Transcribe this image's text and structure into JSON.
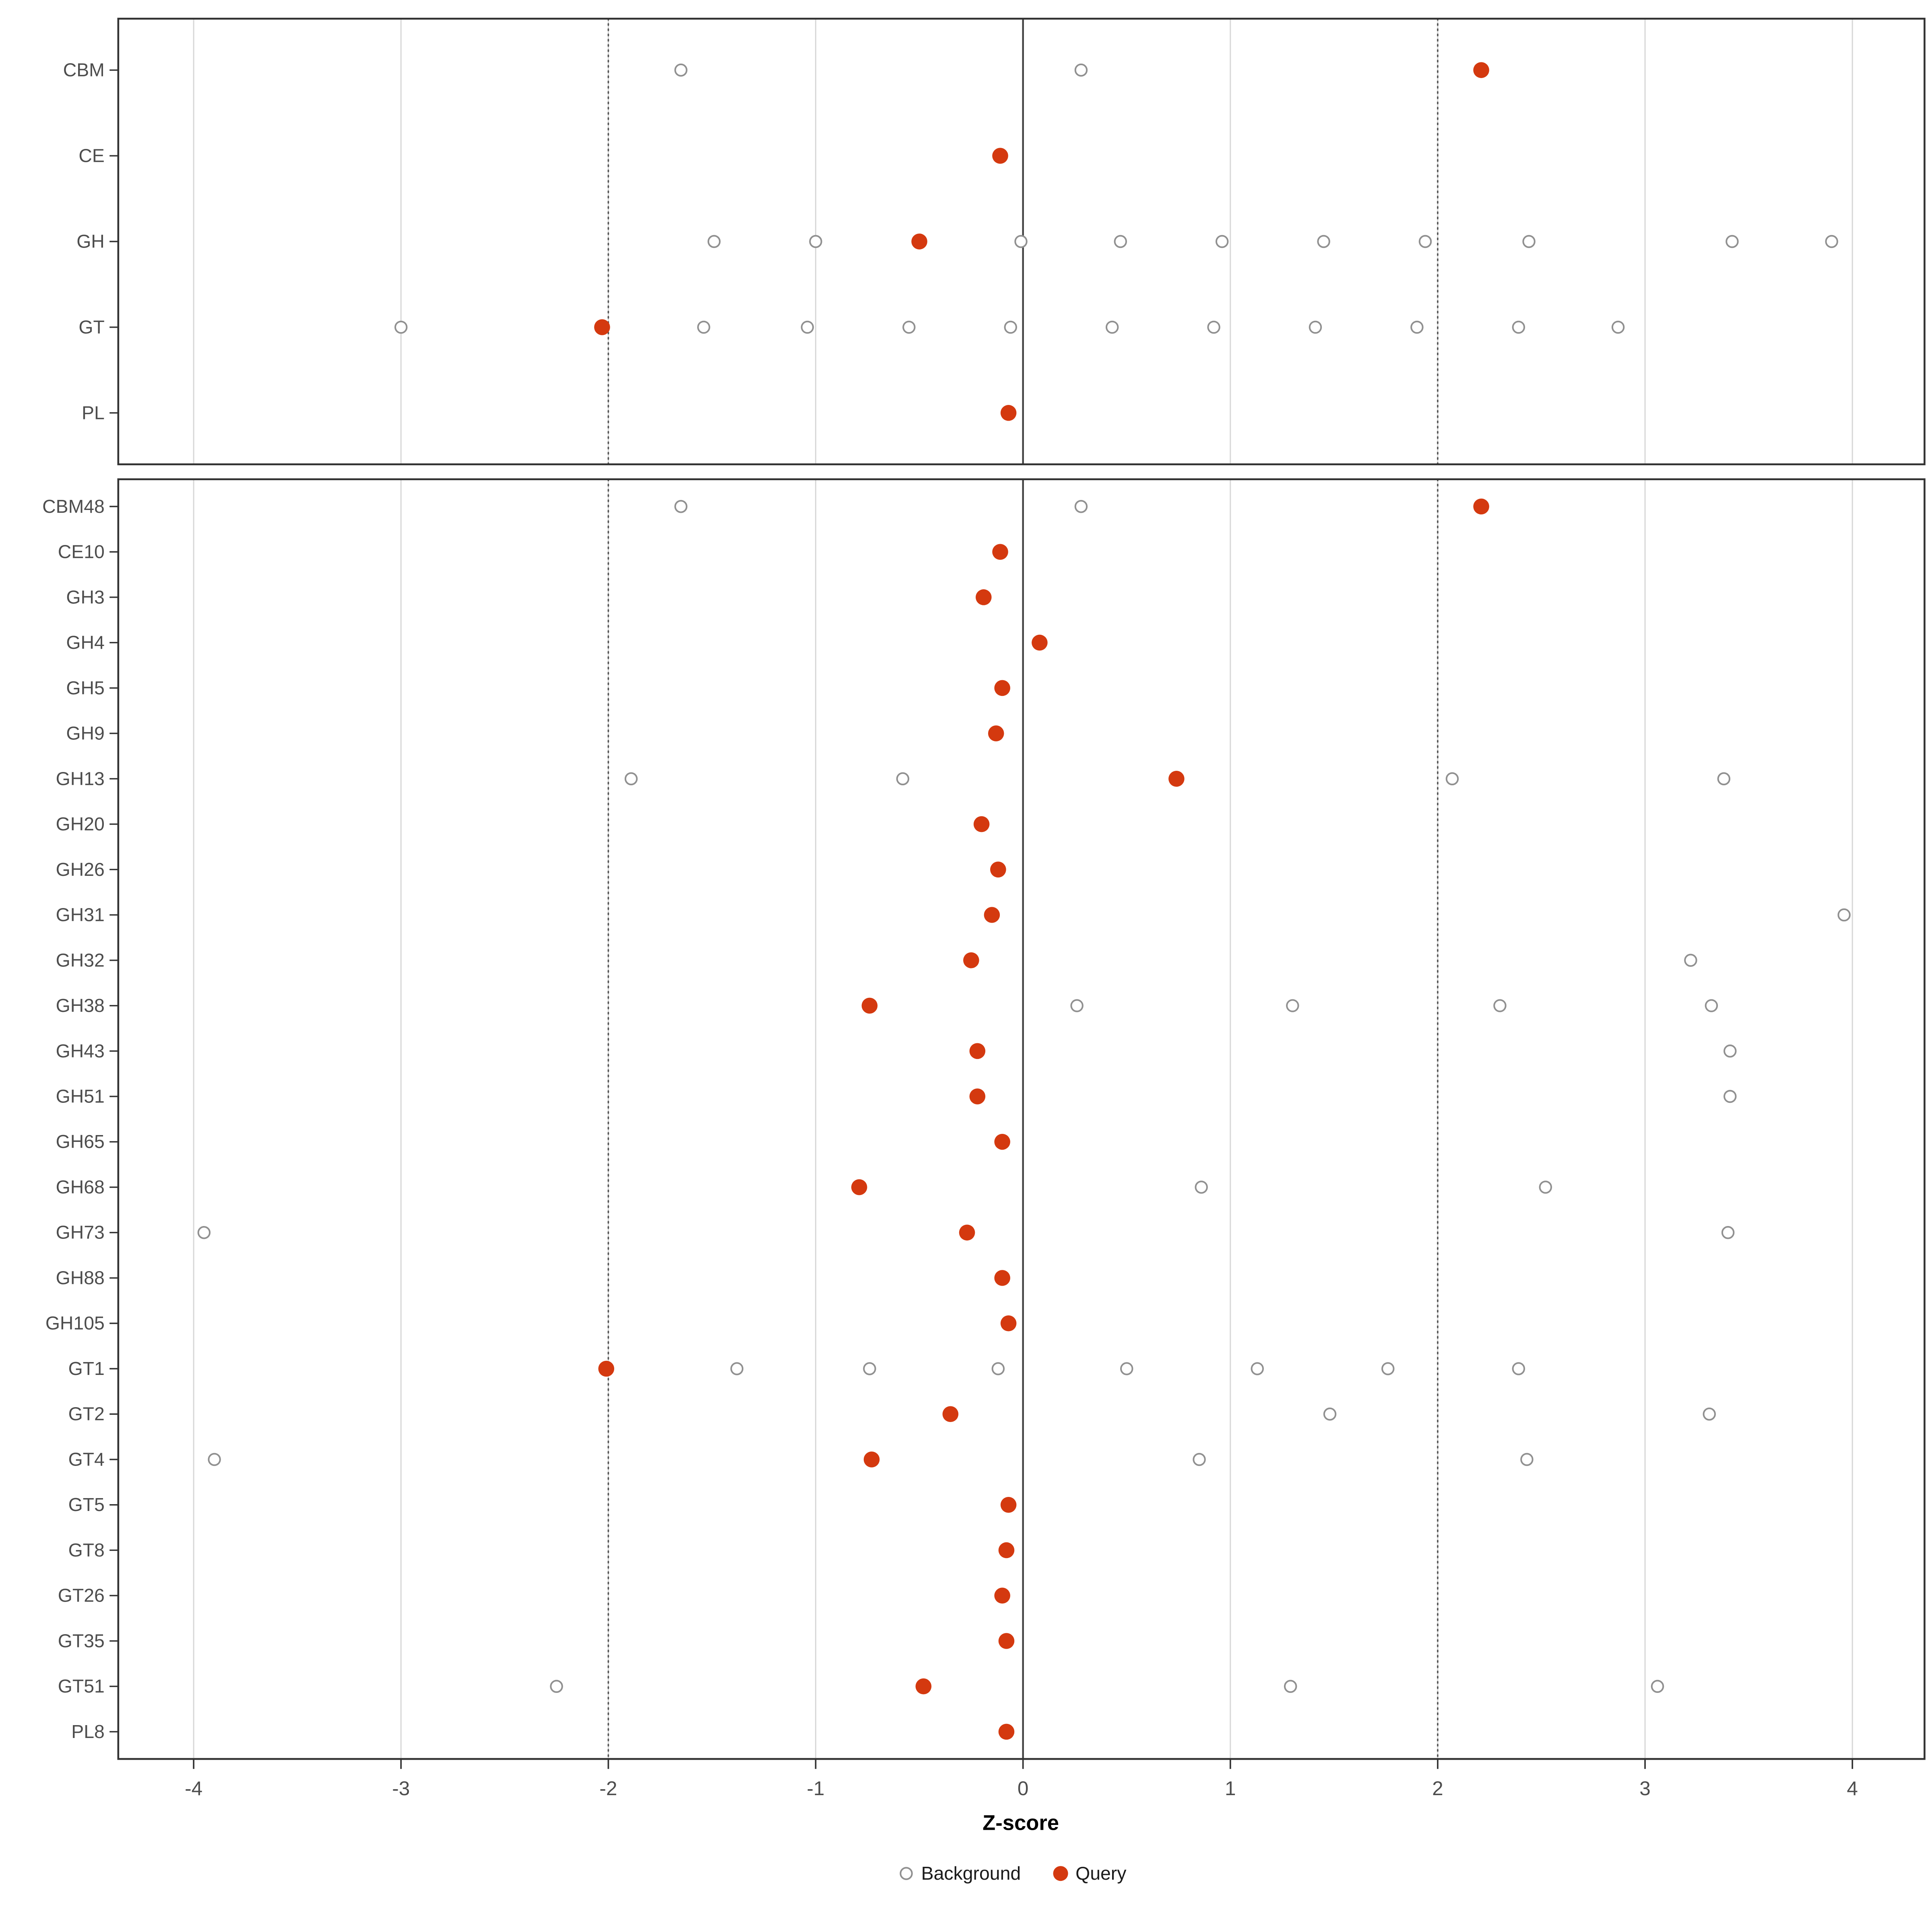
{
  "chart_data": {
    "type": "scatter",
    "title": "",
    "xlabel": "Z-score",
    "ylabel": "",
    "xticks": [
      -4,
      -3,
      -2,
      -1,
      0,
      1,
      2,
      3,
      4
    ],
    "xlim": [
      -4.36,
      4.35
    ],
    "grid": "vertical-major",
    "reference_lines": {
      "solid": [
        0
      ],
      "dotted": [
        -2,
        2
      ]
    },
    "legend_position": "bottom",
    "legend": [
      {
        "label": "Background",
        "style": "open"
      },
      {
        "label": "Query",
        "style": "filled"
      }
    ],
    "colors": {
      "query": "#D4390F",
      "background_fill": "#FFFFFF",
      "background_stroke": "#909090",
      "grid": "#D8D8D8",
      "panel_border": "#333333",
      "zero_line": "#3F3F3F",
      "dotted_line": "#555555",
      "axis_text": "#4D4D4D"
    },
    "panels": [
      {
        "name": "families",
        "rows": [
          {
            "label": "CBM",
            "background": [
              -1.65,
              0.28
            ],
            "query": [
              2.21
            ]
          },
          {
            "label": "CE",
            "background": [],
            "query": [
              -0.11
            ]
          },
          {
            "label": "GH",
            "background": [
              -1.49,
              -1.0,
              -0.01,
              0.47,
              0.96,
              1.45,
              1.94,
              2.44,
              3.42,
              3.9
            ],
            "query": [
              -0.5
            ]
          },
          {
            "label": "GT",
            "background": [
              -3.0,
              -1.54,
              -1.04,
              -0.55,
              -0.06,
              0.43,
              0.92,
              1.41,
              1.9,
              2.39,
              2.87
            ],
            "query": [
              -2.03
            ]
          },
          {
            "label": "PL",
            "background": [],
            "query": [
              -0.07
            ]
          }
        ]
      },
      {
        "name": "subfamilies",
        "rows": [
          {
            "label": "CBM48",
            "background": [
              -1.65,
              0.28
            ],
            "query": [
              2.21
            ]
          },
          {
            "label": "CE10",
            "background": [],
            "query": [
              -0.11
            ]
          },
          {
            "label": "GH3",
            "background": [],
            "query": [
              -0.19
            ]
          },
          {
            "label": "GH4",
            "background": [],
            "query": [
              0.08
            ]
          },
          {
            "label": "GH5",
            "background": [],
            "query": [
              -0.1
            ]
          },
          {
            "label": "GH9",
            "background": [],
            "query": [
              -0.13
            ]
          },
          {
            "label": "GH13",
            "background": [
              -1.89,
              -0.58,
              2.07,
              3.38
            ],
            "query": [
              0.74
            ]
          },
          {
            "label": "GH20",
            "background": [],
            "query": [
              -0.2
            ]
          },
          {
            "label": "GH26",
            "background": [],
            "query": [
              -0.12
            ]
          },
          {
            "label": "GH31",
            "background": [
              3.96
            ],
            "query": [
              -0.15
            ]
          },
          {
            "label": "GH32",
            "background": [
              3.22
            ],
            "query": [
              -0.25
            ]
          },
          {
            "label": "GH38",
            "background": [
              0.26,
              1.3,
              2.3,
              3.32
            ],
            "query": [
              -0.74
            ]
          },
          {
            "label": "GH43",
            "background": [
              3.41
            ],
            "query": [
              -0.22
            ]
          },
          {
            "label": "GH51",
            "background": [
              3.41
            ],
            "query": [
              -0.22
            ]
          },
          {
            "label": "GH65",
            "background": [],
            "query": [
              -0.1
            ]
          },
          {
            "label": "GH68",
            "background": [
              0.86,
              2.52
            ],
            "query": [
              -0.79
            ]
          },
          {
            "label": "GH73",
            "background": [
              -3.95,
              3.4
            ],
            "query": [
              -0.27
            ]
          },
          {
            "label": "GH88",
            "background": [],
            "query": [
              -0.1
            ]
          },
          {
            "label": "GH105",
            "background": [],
            "query": [
              -0.07
            ]
          },
          {
            "label": "GT1",
            "background": [
              -1.38,
              -0.74,
              -0.12,
              0.5,
              1.13,
              1.76,
              2.39
            ],
            "query": [
              -2.01
            ]
          },
          {
            "label": "GT2",
            "background": [
              1.48,
              3.31
            ],
            "query": [
              -0.35
            ]
          },
          {
            "label": "GT4",
            "background": [
              -3.9,
              0.85,
              2.43
            ],
            "query": [
              -0.73
            ]
          },
          {
            "label": "GT5",
            "background": [],
            "query": [
              -0.07
            ]
          },
          {
            "label": "GT8",
            "background": [],
            "query": [
              -0.08
            ]
          },
          {
            "label": "GT26",
            "background": [],
            "query": [
              -0.1
            ]
          },
          {
            "label": "GT35",
            "background": [],
            "query": [
              -0.08
            ]
          },
          {
            "label": "GT51",
            "background": [
              -2.25,
              1.29,
              3.06
            ],
            "query": [
              -0.48
            ]
          },
          {
            "label": "PL8",
            "background": [],
            "query": [
              -0.08
            ]
          }
        ]
      }
    ]
  }
}
